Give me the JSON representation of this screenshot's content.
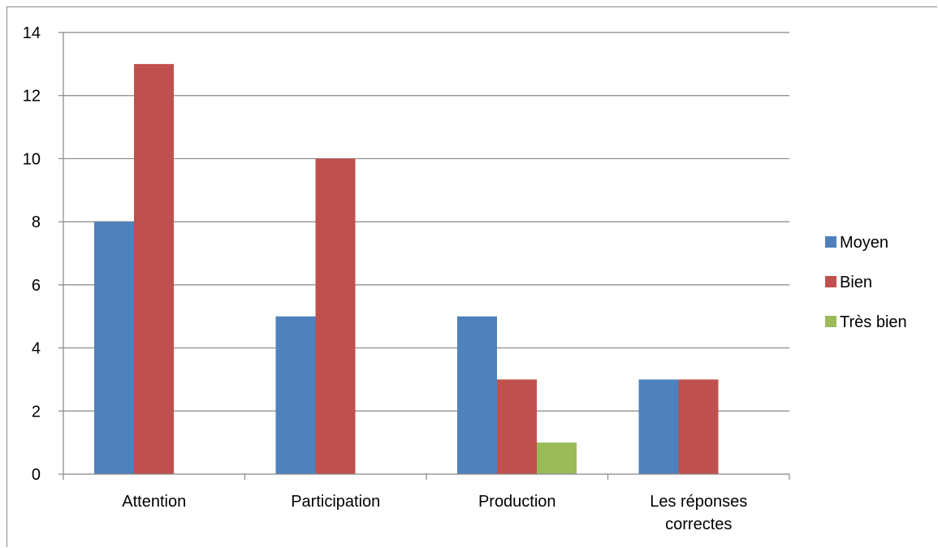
{
  "chart_data": {
    "type": "bar",
    "title": "",
    "xlabel": "",
    "ylabel": "",
    "categories": [
      [
        "Attention"
      ],
      [
        "Participation"
      ],
      [
        "Production"
      ],
      [
        "Les réponses",
        "correctes"
      ]
    ],
    "series": [
      {
        "name": "Moyen",
        "color": "#4F81BD",
        "values": [
          8,
          5,
          5,
          3
        ]
      },
      {
        "name": "Bien",
        "color": "#C0504D",
        "values": [
          13,
          10,
          3,
          3
        ]
      },
      {
        "name": "Très bien",
        "color": "#9BBB59",
        "values": [
          0,
          0,
          1,
          0
        ]
      }
    ],
    "ylim": [
      0,
      14
    ],
    "yticks": [
      0,
      2,
      4,
      6,
      8,
      10,
      12,
      14
    ],
    "grid": true,
    "legend_position": "right"
  }
}
